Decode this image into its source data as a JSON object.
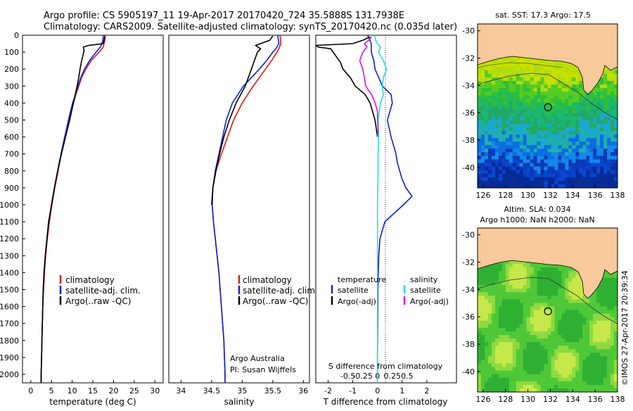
{
  "header": {
    "line1": "Argo profile: CS 5905197_11 19-Apr-2017 20170420_724 35.5888S 131.7938E",
    "line2": "Climatology: CARS2009. Satellite-adjusted climatology: synTS_20170420.nc (0.035d later)"
  },
  "colors": {
    "climatology": "#ee1111",
    "satellite": "#1122cc",
    "argo": "#000000",
    "salinity_satellite": "#22dde8",
    "salinity_argo": "#dd11dd",
    "land": "#f8c99a",
    "contour": "#333333"
  },
  "chart_data": [
    {
      "type": "line",
      "name": "temperature-profile",
      "xlabel": "temperature (deg C)",
      "xlim": [
        -2,
        32
      ],
      "xticks": [
        0,
        5,
        10,
        15,
        20,
        25,
        30
      ],
      "ylim": [
        0,
        2050
      ],
      "yticks": [
        0,
        100,
        200,
        300,
        400,
        500,
        600,
        700,
        800,
        900,
        1000,
        1100,
        1200,
        1300,
        1400,
        1500,
        1600,
        1700,
        1800,
        1900,
        2000
      ],
      "legend": [
        "climatology",
        "satellite-adj. clim.",
        "Argo(..raw -QC)"
      ],
      "series": [
        {
          "name": "climatology",
          "color": "#ee1111",
          "depth": [
            0,
            30,
            50,
            70,
            100,
            150,
            200,
            250,
            300,
            350,
            400,
            500,
            600,
            700,
            800,
            900,
            1000,
            1100,
            1200,
            1300,
            1400,
            1500,
            1600,
            1700,
            1800,
            1900,
            2000,
            2050
          ],
          "values": [
            18,
            17.9,
            17.7,
            17.5,
            16.5,
            14.6,
            13.3,
            12.3,
            11.6,
            10.9,
            10.3,
            9.2,
            8.3,
            7.4,
            6.6,
            5.8,
            5.1,
            4.5,
            4.0,
            3.6,
            3.3,
            3.1,
            2.9,
            2.8,
            2.7,
            2.6,
            2.5,
            2.5
          ]
        },
        {
          "name": "satellite-adj. clim.",
          "color": "#1122cc",
          "depth": [
            0,
            30,
            50,
            70,
            100,
            150,
            200,
            250,
            300,
            350,
            400,
            500,
            600,
            700,
            800,
            900,
            1000,
            1100,
            1200,
            1300,
            1400,
            1500,
            1600,
            1700,
            1800,
            1900,
            2000,
            2050
          ],
          "values": [
            17.6,
            17.4,
            17.2,
            16.8,
            15.8,
            14.2,
            13.0,
            12.1,
            11.4,
            10.8,
            10.1,
            9.1,
            8.2,
            7.3,
            6.5,
            5.7,
            5.0,
            4.4,
            3.9,
            3.5,
            3.2,
            3.0,
            2.9,
            2.8,
            2.7,
            2.6,
            2.5,
            2.5
          ]
        },
        {
          "name": "Argo(..raw -QC)",
          "color": "#000000",
          "depth": [
            5,
            30,
            50,
            60,
            70,
            90,
            110,
            130,
            150,
            200,
            250,
            300,
            400,
            500,
            600,
            700,
            800,
            900,
            1000,
            1100,
            1200,
            1300,
            1400,
            1500,
            1600,
            1700,
            1800,
            1900,
            2000,
            2050
          ],
          "values": [
            17.9,
            17.7,
            17.5,
            14.0,
            12.7,
            12.9,
            12.7,
            12.5,
            12.3,
            11.9,
            11.6,
            11.2,
            10.3,
            9.4,
            8.4,
            7.4,
            6.5,
            5.7,
            5.0,
            4.3,
            3.9,
            3.5,
            3.2,
            3.0,
            2.9,
            2.8,
            2.7,
            2.6,
            2.5,
            2.5
          ]
        }
      ]
    },
    {
      "type": "line",
      "name": "salinity-profile",
      "xlabel": "salinity",
      "xlim": [
        33.8,
        36.1
      ],
      "xticks": [
        34,
        34.5,
        35,
        35.5,
        36
      ],
      "ylim": [
        0,
        2050
      ],
      "legend": [
        "climatology",
        "satellite-adj. clim.",
        "Argo(..raw -QC)"
      ],
      "annotations": [
        "Argo Australia",
        "PI: Susan Wijffels"
      ],
      "series": [
        {
          "name": "climatology",
          "color": "#ee1111",
          "depth": [
            0,
            50,
            80,
            100,
            150,
            200,
            300,
            400,
            500,
            600,
            700,
            800,
            900,
            1000,
            1100,
            1200,
            1300,
            1400,
            1500,
            1600,
            1700,
            1800,
            1900,
            2000,
            2050
          ],
          "values": [
            35.62,
            35.63,
            35.6,
            35.57,
            35.48,
            35.38,
            35.18,
            35.0,
            34.86,
            34.76,
            34.66,
            34.57,
            34.52,
            34.51,
            34.53,
            34.56,
            34.59,
            34.62,
            34.64,
            34.66,
            34.68,
            34.7,
            34.71,
            34.72,
            34.72
          ]
        },
        {
          "name": "satellite-adj. clim.",
          "color": "#1122cc",
          "depth": [
            0,
            50,
            80,
            100,
            150,
            200,
            300,
            400,
            500,
            600,
            700,
            800,
            900,
            1000,
            1100,
            1200,
            1300,
            1400,
            1500,
            1600,
            1700,
            1800,
            1900,
            2000,
            2050
          ],
          "values": [
            35.58,
            35.6,
            35.55,
            35.5,
            35.4,
            35.28,
            35.02,
            34.84,
            34.74,
            34.68,
            34.62,
            34.56,
            34.52,
            34.51,
            34.53,
            34.56,
            34.59,
            34.62,
            34.64,
            34.66,
            34.68,
            34.7,
            34.71,
            34.72,
            34.72
          ]
        },
        {
          "name": "Argo(..raw -QC)",
          "color": "#000000",
          "depth": [
            5,
            30,
            60,
            80,
            100,
            150,
            200,
            300,
            400,
            500,
            600,
            700,
            800,
            900,
            1000
          ],
          "values": [
            35.5,
            35.45,
            35.22,
            35.3,
            35.25,
            35.2,
            35.15,
            35.05,
            34.9,
            34.79,
            34.7,
            34.63,
            34.57,
            34.52,
            34.5
          ]
        }
      ]
    },
    {
      "type": "line",
      "name": "difference-profile",
      "xlabel": "T difference from climatology",
      "xlabel2": "S difference from climatology",
      "xlim": [
        -2.5,
        3.2
      ],
      "xticks": [
        -2,
        -1,
        0,
        1,
        2
      ],
      "xticks2": [
        "-0.5",
        "-0.25",
        "0",
        "0.25",
        "0.5"
      ],
      "ylim": [
        0,
        2050
      ],
      "legend": {
        "temperature_title": "temperature",
        "salinity_title": "salinity",
        "satellite": "satellite",
        "argo_t": "Argo(-adj)",
        "argo_s": "Argo(-adj)"
      },
      "series": [
        {
          "name": "T satellite",
          "color": "#1122cc",
          "depth": [
            0,
            50,
            100,
            150,
            200,
            300,
            350,
            400,
            500,
            600,
            700,
            750,
            800,
            850,
            900,
            950,
            1000,
            1100,
            1200,
            1300,
            1500,
            1700,
            1900,
            2000,
            2050
          ],
          "values": [
            -0.4,
            -0.25,
            -0.25,
            -0.15,
            -0.1,
            0.2,
            0.55,
            0.6,
            0.4,
            0.55,
            0.75,
            0.8,
            0.9,
            1.0,
            1.15,
            1.4,
            1.05,
            0.3,
            0.1,
            0.05,
            0.02,
            0.01,
            0.0,
            0.0,
            0.0
          ]
        },
        {
          "name": "T Argo(-adj)",
          "color": "#000000",
          "depth": [
            10,
            30,
            50,
            60,
            70,
            80,
            100,
            130,
            160,
            200,
            250,
            300,
            350,
            400,
            450,
            500,
            550,
            600
          ],
          "values": [
            -0.3,
            -0.6,
            -1.0,
            -2.5,
            -2.4,
            -1.9,
            -1.8,
            -1.65,
            -1.5,
            -1.4,
            -1.1,
            -0.9,
            -0.5,
            -0.3,
            -0.2,
            -0.1,
            -0.05,
            0.0
          ]
        },
        {
          "name": "S satellite",
          "color": "#22dde8",
          "depth": [
            0,
            30,
            50,
            70,
            100,
            150,
            200,
            250,
            300,
            350,
            400,
            500,
            600,
            700,
            800,
            1000,
            1200,
            1500,
            2000,
            2050
          ],
          "values": [
            -0.05,
            -0.03,
            0.0,
            0.05,
            0.02,
            0.1,
            0.15,
            0.1,
            0.08,
            0.1,
            0.05,
            0.01,
            0.02,
            0.01,
            0.01,
            0.0,
            0.0,
            0.0,
            0.0,
            0.0
          ]
        },
        {
          "name": "S Argo(-adj)",
          "color": "#dd11dd",
          "depth": [
            10,
            30,
            50,
            70,
            100,
            150,
            200,
            250,
            300,
            350,
            400,
            450,
            500,
            550,
            600
          ],
          "values": [
            -0.1,
            -0.15,
            -0.22,
            -0.18,
            -0.25,
            -0.3,
            -0.25,
            -0.22,
            -0.2,
            -0.1,
            -0.04,
            0.0,
            0.0,
            0.01,
            0.0
          ]
        }
      ]
    },
    {
      "type": "heatmap",
      "name": "sst-map",
      "title": "sat. SST: 17.3 Argo: 17.5",
      "xlim": [
        125.5,
        138
      ],
      "ylim": [
        -41.5,
        -29.5
      ],
      "xticks": [
        126,
        128,
        130,
        132,
        134,
        136,
        138
      ],
      "yticks": [
        -30,
        -32,
        -34,
        -36,
        -38,
        -40
      ],
      "argo_position": {
        "lon": 131.79,
        "lat": -35.59
      }
    },
    {
      "type": "heatmap",
      "name": "sla-map",
      "title": "Altim. SLA: 0.034",
      "subtitle": "Argo h1000: NaN h2000: NaN",
      "xlim": [
        125.5,
        138
      ],
      "ylim": [
        -41.5,
        -29.5
      ],
      "xticks": [
        126,
        128,
        130,
        132,
        134,
        136,
        138
      ],
      "yticks": [
        -30,
        -32,
        -34,
        -36,
        -38,
        -40
      ],
      "argo_position": {
        "lon": 131.79,
        "lat": -35.59
      }
    }
  ],
  "credit": "©IMOS 27-Apr-2017 20:39:34"
}
